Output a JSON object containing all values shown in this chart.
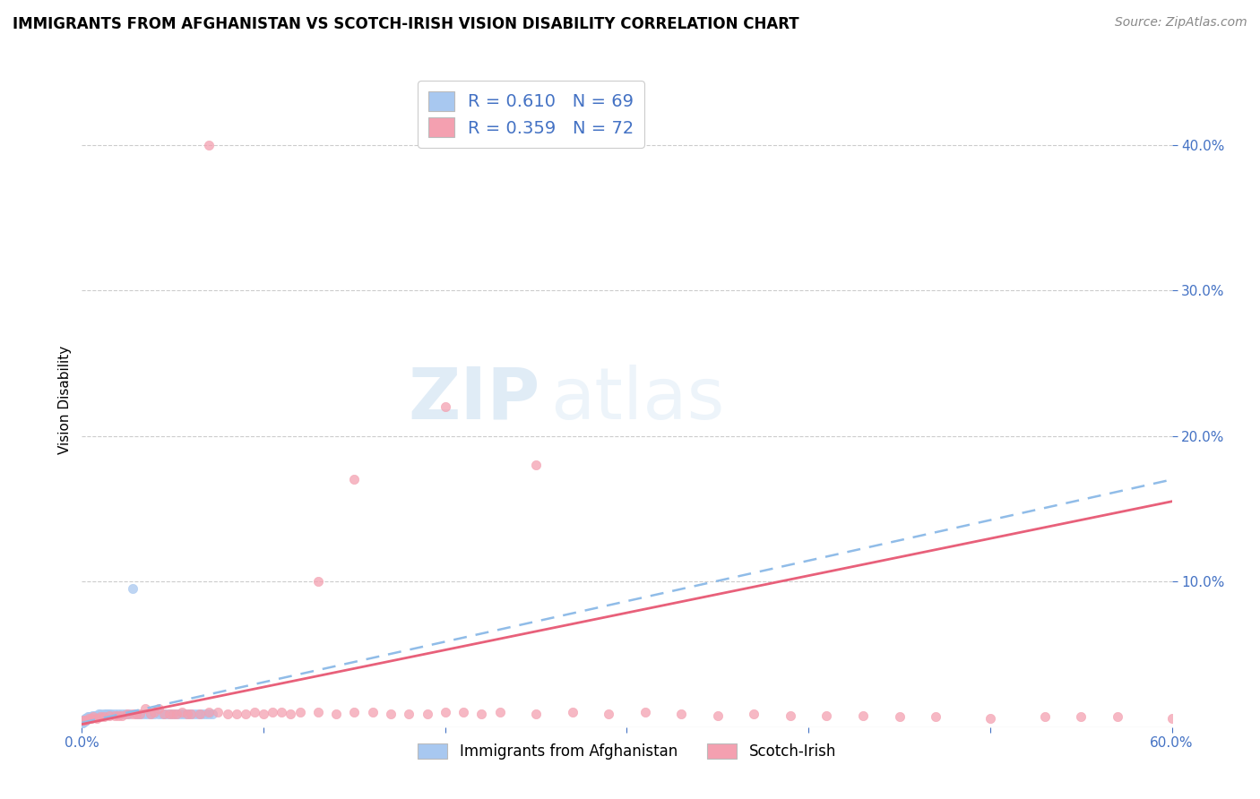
{
  "title": "IMMIGRANTS FROM AFGHANISTAN VS SCOTCH-IRISH VISION DISABILITY CORRELATION CHART",
  "source": "Source: ZipAtlas.com",
  "ylabel": "Vision Disability",
  "xlim": [
    0.0,
    0.6
  ],
  "ylim": [
    0.0,
    0.45
  ],
  "color_afghanistan": "#a8c8f0",
  "color_scotch_irish": "#f4a0b0",
  "trendline_afghanistan_color": "#90bce8",
  "trendline_scotch_irish_color": "#e8607a",
  "legend_R_afghanistan": "0.610",
  "legend_N_afghanistan": "69",
  "legend_R_scotch_irish": "0.359",
  "legend_N_scotch_irish": "72",
  "legend_label_afghanistan": "Immigrants from Afghanistan",
  "legend_label_scotch_irish": "Scotch-Irish",
  "watermark_zip": "ZIP",
  "watermark_atlas": "atlas",
  "afghanistan_x": [
    0.0002,
    0.0003,
    0.0004,
    0.0005,
    0.0006,
    0.0007,
    0.0008,
    0.0009,
    0.001,
    0.0011,
    0.0012,
    0.0013,
    0.0015,
    0.0016,
    0.0017,
    0.0018,
    0.002,
    0.0021,
    0.0022,
    0.0025,
    0.003,
    0.0032,
    0.0035,
    0.004,
    0.0042,
    0.0045,
    0.005,
    0.0055,
    0.006,
    0.0065,
    0.007,
    0.0075,
    0.008,
    0.009,
    0.01,
    0.011,
    0.012,
    0.013,
    0.014,
    0.015,
    0.016,
    0.018,
    0.02,
    0.022,
    0.024,
    0.026,
    0.028,
    0.03,
    0.032,
    0.034,
    0.036,
    0.038,
    0.04,
    0.042,
    0.044,
    0.046,
    0.048,
    0.05,
    0.052,
    0.054,
    0.056,
    0.058,
    0.06,
    0.062,
    0.064,
    0.066,
    0.068,
    0.07,
    0.072
  ],
  "afghanistan_y": [
    0.004,
    0.003,
    0.004,
    0.003,
    0.005,
    0.004,
    0.004,
    0.005,
    0.004,
    0.005,
    0.004,
    0.005,
    0.005,
    0.006,
    0.004,
    0.005,
    0.005,
    0.006,
    0.005,
    0.006,
    0.006,
    0.007,
    0.006,
    0.007,
    0.006,
    0.007,
    0.007,
    0.008,
    0.007,
    0.008,
    0.007,
    0.008,
    0.008,
    0.009,
    0.009,
    0.008,
    0.009,
    0.009,
    0.009,
    0.009,
    0.009,
    0.009,
    0.009,
    0.009,
    0.009,
    0.009,
    0.095,
    0.009,
    0.009,
    0.009,
    0.009,
    0.009,
    0.009,
    0.009,
    0.009,
    0.009,
    0.009,
    0.009,
    0.009,
    0.009,
    0.009,
    0.009,
    0.009,
    0.009,
    0.009,
    0.009,
    0.009,
    0.009,
    0.009
  ],
  "scotch_x": [
    0.001,
    0.002,
    0.004,
    0.005,
    0.006,
    0.008,
    0.01,
    0.012,
    0.015,
    0.018,
    0.02,
    0.022,
    0.025,
    0.028,
    0.03,
    0.032,
    0.035,
    0.038,
    0.04,
    0.042,
    0.045,
    0.048,
    0.05,
    0.052,
    0.055,
    0.058,
    0.06,
    0.065,
    0.07,
    0.075,
    0.08,
    0.085,
    0.09,
    0.095,
    0.1,
    0.105,
    0.11,
    0.115,
    0.12,
    0.13,
    0.14,
    0.15,
    0.16,
    0.17,
    0.18,
    0.19,
    0.2,
    0.21,
    0.22,
    0.23,
    0.25,
    0.27,
    0.29,
    0.31,
    0.33,
    0.35,
    0.37,
    0.39,
    0.41,
    0.43,
    0.45,
    0.47,
    0.5,
    0.53,
    0.55,
    0.57,
    0.6,
    0.07,
    0.13,
    0.15,
    0.2,
    0.25
  ],
  "scotch_y": [
    0.005,
    0.005,
    0.006,
    0.006,
    0.007,
    0.006,
    0.007,
    0.007,
    0.008,
    0.008,
    0.008,
    0.008,
    0.009,
    0.009,
    0.009,
    0.009,
    0.013,
    0.009,
    0.01,
    0.013,
    0.009,
    0.009,
    0.009,
    0.009,
    0.01,
    0.009,
    0.009,
    0.009,
    0.01,
    0.01,
    0.009,
    0.009,
    0.009,
    0.01,
    0.009,
    0.01,
    0.01,
    0.009,
    0.01,
    0.01,
    0.009,
    0.01,
    0.01,
    0.009,
    0.009,
    0.009,
    0.01,
    0.01,
    0.009,
    0.01,
    0.009,
    0.01,
    0.009,
    0.01,
    0.009,
    0.008,
    0.009,
    0.008,
    0.008,
    0.008,
    0.007,
    0.007,
    0.006,
    0.007,
    0.007,
    0.007,
    0.006,
    0.4,
    0.1,
    0.17,
    0.22,
    0.18
  ]
}
